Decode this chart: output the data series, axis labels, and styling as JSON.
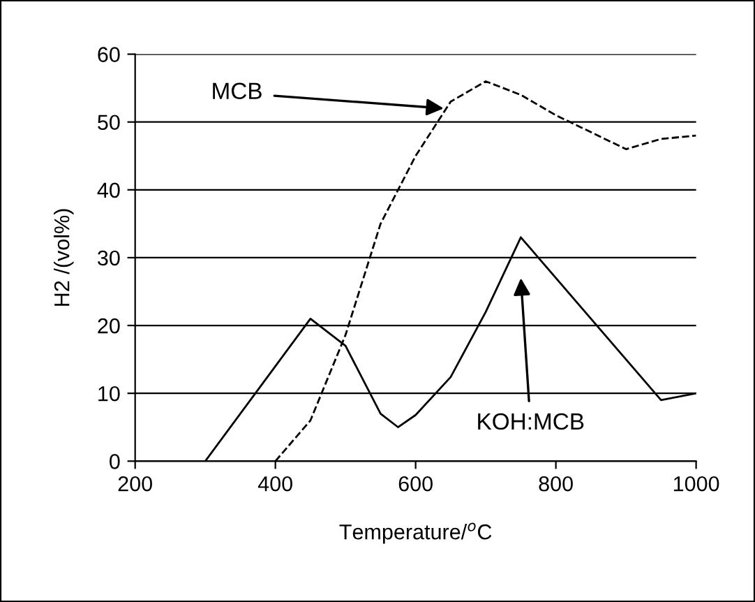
{
  "chart_data": {
    "type": "line",
    "xlabel": "Temperature/$^{o}$C",
    "ylabel": "H2 /(vol%)",
    "xlim": [
      200,
      1000
    ],
    "xticks": [
      200,
      400,
      600,
      800,
      1000
    ],
    "ylim": [
      0,
      60
    ],
    "yticks": [
      0,
      10,
      20,
      30,
      40,
      50,
      60
    ],
    "grid": "y",
    "legend": false,
    "marker": "none",
    "series": [
      {
        "color": "#000000",
        "line_style": "dashed",
        "x": [
          400,
          450,
          500,
          550,
          600,
          650,
          700,
          750,
          800,
          900,
          950,
          1000
        ],
        "values": [
          0,
          6,
          18.6,
          35,
          45,
          53,
          56,
          54,
          51,
          46,
          47.5,
          48
        ]
      },
      {
        "color": "#000000",
        "line_style": "solid",
        "x": [
          300,
          400,
          450,
          500,
          550,
          575,
          600,
          650,
          700,
          750,
          950,
          1000
        ],
        "values": [
          0,
          14,
          21,
          17,
          7,
          5,
          6.8,
          12.4,
          22,
          33,
          9,
          10
        ]
      }
    ],
    "annotations": [
      {
        "text": "MCB",
        "x": 640,
        "y": 52
      },
      "KOH:MCB"
    ]
  }
}
